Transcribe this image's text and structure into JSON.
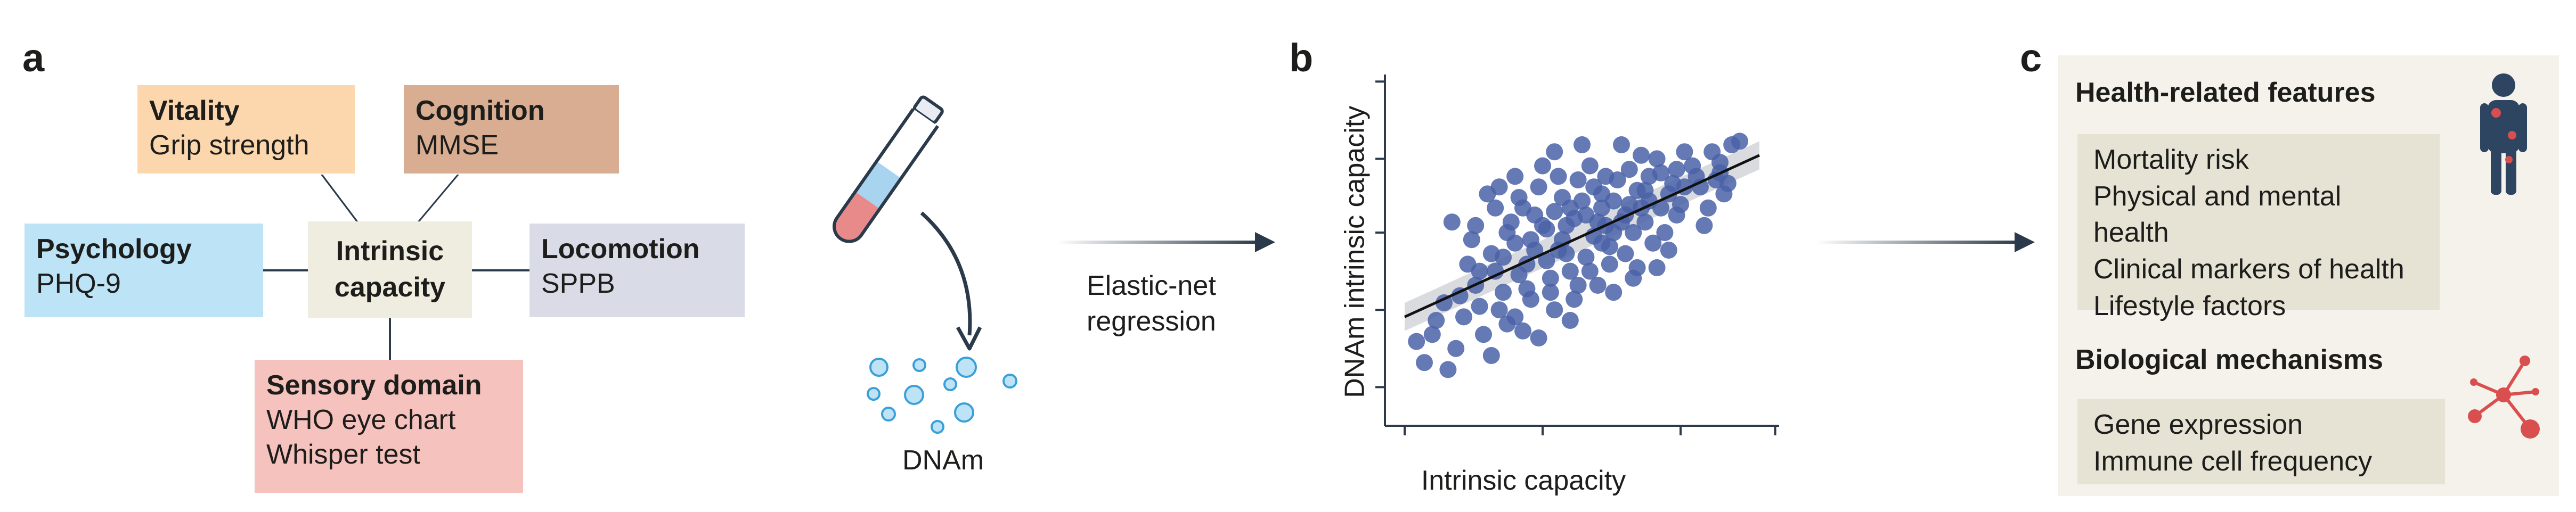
{
  "panel_a": {
    "letter": "a",
    "center": {
      "line1": "Intrinsic",
      "line2": "capacity"
    },
    "domains": {
      "vitality": {
        "title": "Vitality",
        "detail": "Grip strength",
        "color": "#fcd7ad"
      },
      "cognition": {
        "title": "Cognition",
        "detail": "MMSE",
        "color": "#d9ad91"
      },
      "psychology": {
        "title": "Psychology",
        "detail": "PHQ-9",
        "color": "#bde3f6"
      },
      "locomotion": {
        "title": "Locomotion",
        "detail": "SPPB",
        "color": "#d9dce6"
      },
      "sensory": {
        "title": "Sensory domain",
        "details": [
          "WHO eye chart",
          "Whisper test"
        ],
        "color": "#f6c2bd"
      }
    },
    "dnam_label": "DNAm"
  },
  "arrow1_label": {
    "line1": "Elastic-net",
    "line2": "regression"
  },
  "panel_b": {
    "letter": "b"
  },
  "chart_data": {
    "type": "scatter",
    "title": "",
    "xlabel": "Intrinsic capacity",
    "ylabel": "DNAm intrinsic capacity",
    "xlim": [
      0,
      100
    ],
    "ylim": [
      0,
      100
    ],
    "x_ticks": [
      5,
      40,
      75,
      99
    ],
    "y_ticks": [
      11,
      33,
      55,
      76,
      98
    ],
    "tick_labels_shown": false,
    "regression_line": {
      "x": [
        5,
        95
      ],
      "y": [
        31,
        77
      ],
      "ci_band": true
    },
    "point_color": "#4a62a8",
    "points": [
      [
        17,
        58
      ],
      [
        30,
        38
      ],
      [
        41,
        56
      ],
      [
        28,
        62
      ],
      [
        51,
        60
      ],
      [
        62,
        63
      ],
      [
        36,
        46
      ],
      [
        44,
        50
      ],
      [
        55,
        52
      ],
      [
        47,
        44
      ],
      [
        33,
        52
      ],
      [
        59,
        70
      ],
      [
        23,
        40
      ],
      [
        66,
        67
      ],
      [
        52,
        74
      ],
      [
        39,
        68
      ],
      [
        70,
        72
      ],
      [
        27,
        49
      ],
      [
        48,
        59
      ],
      [
        57,
        46
      ],
      [
        20,
        31
      ],
      [
        35,
        27
      ],
      [
        43,
        33
      ],
      [
        63,
        55
      ],
      [
        74,
        60
      ],
      [
        50,
        80
      ],
      [
        78,
        74
      ],
      [
        31,
        55
      ],
      [
        45,
        65
      ],
      [
        54,
        40
      ],
      [
        61,
        49
      ],
      [
        24,
        44
      ],
      [
        38,
        60
      ],
      [
        68,
        52
      ],
      [
        29,
        33
      ],
      [
        42,
        42
      ],
      [
        56,
        57
      ],
      [
        65,
        62
      ],
      [
        72,
        66
      ],
      [
        49,
        70
      ],
      [
        13,
        30
      ],
      [
        18,
        22
      ],
      [
        25,
        26
      ],
      [
        37,
        36
      ],
      [
        46,
        49
      ],
      [
        58,
        64
      ],
      [
        67,
        71
      ],
      [
        76,
        78
      ],
      [
        82,
        62
      ],
      [
        60,
        80
      ],
      [
        33,
        71
      ],
      [
        40,
        74
      ],
      [
        53,
        68
      ],
      [
        64,
        45
      ],
      [
        71,
        55
      ],
      [
        22,
        53
      ],
      [
        34,
        43
      ],
      [
        43,
        61
      ],
      [
        55,
        62
      ],
      [
        62,
        73
      ],
      [
        10,
        18
      ],
      [
        15,
        35
      ],
      [
        27,
        20
      ],
      [
        39,
        25
      ],
      [
        47,
        30
      ],
      [
        58,
        38
      ],
      [
        69,
        45
      ],
      [
        80,
        68
      ],
      [
        85,
        75
      ],
      [
        88,
        80
      ],
      [
        12,
        26
      ],
      [
        21,
        46
      ],
      [
        32,
        58
      ],
      [
        44,
        71
      ],
      [
        53,
        54
      ],
      [
        63,
        42
      ],
      [
        72,
        50
      ],
      [
        81,
        57
      ],
      [
        86,
        66
      ],
      [
        90,
        81
      ],
      [
        26,
        66
      ],
      [
        36,
        39
      ],
      [
        48,
        36
      ],
      [
        57,
        51
      ],
      [
        66,
        58
      ],
      [
        75,
        63
      ],
      [
        84,
        70
      ],
      [
        31,
        29
      ],
      [
        41,
        47
      ],
      [
        51,
        48
      ],
      [
        19,
        37
      ],
      [
        28,
        44
      ],
      [
        37,
        53
      ],
      [
        46,
        57
      ],
      [
        55,
        66
      ],
      [
        64,
        67
      ],
      [
        73,
        69
      ],
      [
        35,
        62
      ],
      [
        45,
        53
      ],
      [
        54,
        58
      ],
      [
        8,
        24
      ],
      [
        16,
        16
      ],
      [
        24,
        34
      ],
      [
        33,
        31
      ],
      [
        42,
        38
      ],
      [
        52,
        44
      ],
      [
        61,
        60
      ],
      [
        70,
        62
      ],
      [
        79,
        71
      ],
      [
        87,
        69
      ],
      [
        29,
        68
      ],
      [
        38,
        50
      ],
      [
        47,
        62
      ],
      [
        56,
        71
      ],
      [
        65,
        77
      ],
      [
        74,
        73
      ],
      [
        83,
        78
      ],
      [
        23,
        57
      ],
      [
        34,
        65
      ],
      [
        43,
        78
      ],
      [
        49,
        40
      ],
      [
        58,
        55
      ],
      [
        67,
        64
      ],
      [
        76,
        68
      ],
      [
        85,
        72
      ],
      [
        30,
        48
      ],
      [
        40,
        57
      ],
      [
        50,
        64
      ],
      [
        60,
        58
      ],
      [
        69,
        76
      ]
    ]
  },
  "panel_c": {
    "letter": "c",
    "background": "#f4f2ea",
    "health": {
      "title": "Health-related features",
      "items": [
        "Mortality risk",
        "Physical and mental health",
        "Clinical markers of health",
        "Lifestyle factors"
      ]
    },
    "bio": {
      "title": "Biological mechanisms",
      "items": [
        "Gene expression",
        "Immune cell frequency"
      ]
    }
  }
}
